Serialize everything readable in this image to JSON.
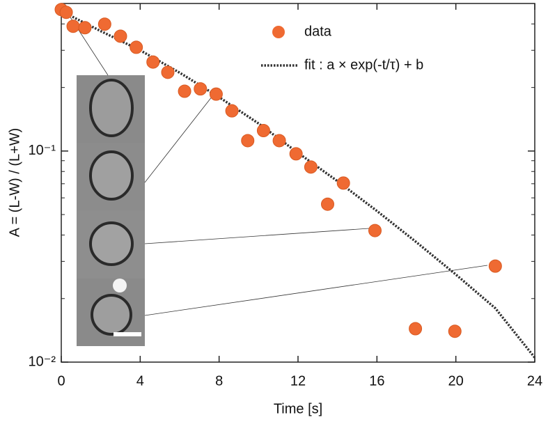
{
  "chart_data": {
    "type": "scatter",
    "xlabel": "Time [s]",
    "ylabel": "A = (L-W) / (L+W)",
    "xlim": [
      0,
      24
    ],
    "xticks": [
      0,
      4,
      8,
      12,
      16,
      20,
      24
    ],
    "ylim": [
      0.01,
      0.5
    ],
    "log_y": true,
    "yticks": [
      {
        "value": 0.01,
        "label": "10⁻²"
      },
      {
        "value": 0.1,
        "label": "10⁻¹"
      }
    ],
    "yminorticks": [
      0.02,
      0.03,
      0.04,
      0.05,
      0.06,
      0.07,
      0.08,
      0.09,
      0.2,
      0.3,
      0.4,
      0.5
    ],
    "legend": "upper right",
    "series": [
      {
        "name": "data",
        "kind": "points",
        "color": "#ef6a32",
        "x": [
          0,
          0.25,
          0.6,
          1.2,
          2.2,
          3.0,
          3.8,
          4.65,
          5.4,
          6.25,
          7.05,
          7.85,
          8.65,
          9.45,
          10.25,
          11.05,
          11.9,
          12.65,
          13.5,
          14.3,
          15.9,
          17.95,
          19.95,
          22.0
        ],
        "values": [
          0.468,
          0.454,
          0.39,
          0.384,
          0.399,
          0.35,
          0.31,
          0.264,
          0.236,
          0.192,
          0.197,
          0.186,
          0.155,
          0.112,
          0.125,
          0.112,
          0.097,
          0.084,
          0.056,
          0.0705,
          0.042,
          0.0144,
          0.014,
          0.0285
        ]
      },
      {
        "name": "fit : a × exp(-t/τ) + b",
        "kind": "dotted-line",
        "color": "#333333",
        "x": [
          0,
          2,
          4,
          6,
          8,
          10,
          12,
          14,
          16,
          18,
          20,
          22,
          24
        ],
        "values": [
          0.46,
          0.37,
          0.3,
          0.235,
          0.18,
          0.135,
          0.098,
          0.072,
          0.052,
          0.037,
          0.026,
          0.018,
          0.0105
        ]
      }
    ]
  }
}
